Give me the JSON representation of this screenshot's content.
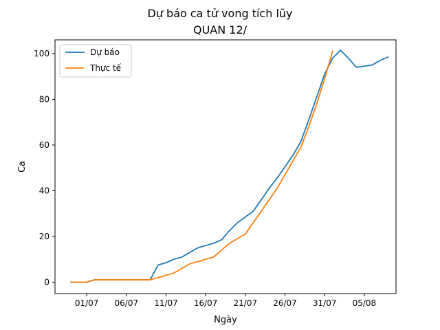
{
  "chart_data": {
    "type": "line",
    "title": "Dự báo ca tử vong tích lũy",
    "subtitle": "QUAN 12/",
    "xlabel": "Ngày",
    "ylabel": "Ca",
    "xlim": [
      "2021-06-27",
      "2021-08-09"
    ],
    "ylim": [
      -5,
      106
    ],
    "x_ticks": [
      {
        "date": "2021-07-01",
        "label": "01/07"
      },
      {
        "date": "2021-07-06",
        "label": "06/07"
      },
      {
        "date": "2021-07-11",
        "label": "11/07"
      },
      {
        "date": "2021-07-16",
        "label": "16/07"
      },
      {
        "date": "2021-07-21",
        "label": "21/07"
      },
      {
        "date": "2021-07-26",
        "label": "26/07"
      },
      {
        "date": "2021-07-31",
        "label": "31/07"
      },
      {
        "date": "2021-08-05",
        "label": "05/08"
      }
    ],
    "y_ticks": [
      0,
      20,
      40,
      60,
      80,
      100
    ],
    "grid": false,
    "legend": "top-left",
    "series": [
      {
        "name": "Dự báo",
        "color": "#1f77b4",
        "points": [
          [
            "2021-06-29",
            0
          ],
          [
            "2021-06-30",
            0
          ],
          [
            "2021-07-01",
            0
          ],
          [
            "2021-07-02",
            1
          ],
          [
            "2021-07-03",
            1
          ],
          [
            "2021-07-04",
            1
          ],
          [
            "2021-07-05",
            1
          ],
          [
            "2021-07-06",
            1
          ],
          [
            "2021-07-07",
            1
          ],
          [
            "2021-07-08",
            1
          ],
          [
            "2021-07-09",
            1
          ],
          [
            "2021-07-10",
            7.5
          ],
          [
            "2021-07-11",
            8.5
          ],
          [
            "2021-07-12",
            10
          ],
          [
            "2021-07-13",
            11
          ],
          [
            "2021-07-14",
            13
          ],
          [
            "2021-07-15",
            15
          ],
          [
            "2021-07-16",
            16
          ],
          [
            "2021-07-17",
            17
          ],
          [
            "2021-07-18",
            18.5
          ],
          [
            "2021-07-19",
            22.5
          ],
          [
            "2021-07-20",
            26
          ],
          [
            "2021-07-21",
            28.5
          ],
          [
            "2021-07-22",
            31
          ],
          [
            "2021-07-23",
            36
          ],
          [
            "2021-07-24",
            41
          ],
          [
            "2021-07-25",
            45.5
          ],
          [
            "2021-07-26",
            50.5
          ],
          [
            "2021-07-27",
            55.5
          ],
          [
            "2021-07-28",
            61.5
          ],
          [
            "2021-07-29",
            71
          ],
          [
            "2021-07-30",
            81
          ],
          [
            "2021-07-31",
            91
          ],
          [
            "2021-08-01",
            98
          ],
          [
            "2021-08-02",
            101.5
          ],
          [
            "2021-08-03",
            98
          ],
          [
            "2021-08-04",
            94
          ],
          [
            "2021-08-05",
            94.5
          ],
          [
            "2021-08-06",
            95
          ],
          [
            "2021-08-07",
            97
          ],
          [
            "2021-08-08",
            98.5
          ]
        ]
      },
      {
        "name": "Thực tế",
        "color": "#ff7f0e",
        "points": [
          [
            "2021-06-29",
            0
          ],
          [
            "2021-06-30",
            0
          ],
          [
            "2021-07-01",
            0
          ],
          [
            "2021-07-02",
            1
          ],
          [
            "2021-07-03",
            1
          ],
          [
            "2021-07-04",
            1
          ],
          [
            "2021-07-05",
            1
          ],
          [
            "2021-07-06",
            1
          ],
          [
            "2021-07-07",
            1
          ],
          [
            "2021-07-08",
            1
          ],
          [
            "2021-07-09",
            1
          ],
          [
            "2021-07-10",
            2
          ],
          [
            "2021-07-11",
            3
          ],
          [
            "2021-07-12",
            4
          ],
          [
            "2021-07-13",
            6
          ],
          [
            "2021-07-14",
            8
          ],
          [
            "2021-07-15",
            9
          ],
          [
            "2021-07-16",
            10
          ],
          [
            "2021-07-17",
            11
          ],
          [
            "2021-07-18",
            14
          ],
          [
            "2021-07-19",
            17
          ],
          [
            "2021-07-20",
            19
          ],
          [
            "2021-07-21",
            21
          ],
          [
            "2021-07-22",
            26
          ],
          [
            "2021-07-23",
            31
          ],
          [
            "2021-07-24",
            36
          ],
          [
            "2021-07-25",
            41
          ],
          [
            "2021-07-26",
            47
          ],
          [
            "2021-07-27",
            53
          ],
          [
            "2021-07-28",
            59
          ],
          [
            "2021-07-29",
            68
          ],
          [
            "2021-07-30",
            78
          ],
          [
            "2021-07-31",
            89
          ],
          [
            "2021-08-01",
            101
          ]
        ]
      }
    ]
  }
}
